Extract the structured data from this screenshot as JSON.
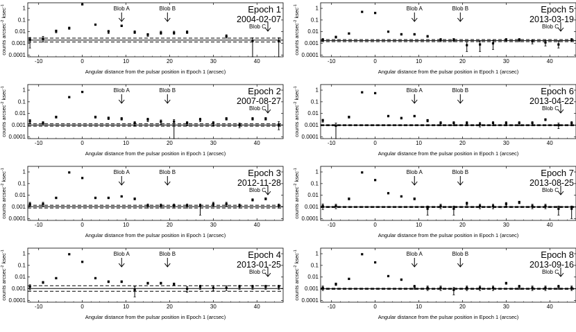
{
  "figure": {
    "common": {
      "xlabel": "Angular distance from the pulsar position in Epoch 1 (arcsec)",
      "ylabel": [
        "counts arcsec",
        "-2",
        " ksec",
        "-1"
      ],
      "xticks": [
        -10,
        0,
        10,
        20,
        30,
        40
      ],
      "yticks": [
        "1",
        "0.1",
        "0.01",
        "0.001",
        "0.0001"
      ],
      "blob_labels": [
        "Blob A",
        "Blob B",
        "Blob C"
      ]
    }
  },
  "chart_data": [
    {
      "type": "scatter",
      "epoch": "Epoch 1",
      "date": "2004-02-07",
      "x_range": [
        -12.5,
        46
      ],
      "y_range_log": [
        7e-05,
        3
      ],
      "blobs": [
        9,
        19.5,
        42.5
      ],
      "band": [
        0.0013,
        0.0028
      ],
      "points": [
        {
          "x": -12,
          "y": 0.002,
          "lo": 0.0004,
          "hi": 0.0032
        },
        {
          "x": -9,
          "y": 0.0025,
          "lo": 0.0013,
          "hi": 0.004
        },
        {
          "x": -6,
          "y": 0.011,
          "lo": 0.008,
          "hi": 0.014
        },
        {
          "x": -3,
          "y": 0.02,
          "lo": 0.016,
          "hi": 0.025
        },
        {
          "x": 0,
          "y": 2.2
        },
        {
          "x": 3,
          "y": 0.04,
          "lo": 0.035,
          "hi": 0.045
        },
        {
          "x": 6,
          "y": 0.01,
          "lo": 0.007,
          "hi": 0.013
        },
        {
          "x": 9,
          "y": 0.032,
          "lo": 0.027,
          "hi": 0.037
        },
        {
          "x": 12,
          "y": 0.009,
          "lo": 0.007,
          "hi": 0.012
        },
        {
          "x": 15,
          "y": 0.0055,
          "lo": 0.004,
          "hi": 0.007
        },
        {
          "x": 18,
          "y": 0.008,
          "lo": 0.006,
          "hi": 0.011
        },
        {
          "x": 21,
          "y": 0.008,
          "lo": 0.006,
          "hi": 0.011
        },
        {
          "x": 24,
          "y": 0.009,
          "lo": 0.007,
          "hi": 0.012
        },
        {
          "x": 33,
          "y": 0.004,
          "lo": 0.0028,
          "hi": 0.0055
        },
        {
          "x": 39,
          "y": 0.0016,
          "lo": 7e-05,
          "hi": 0.003
        },
        {
          "x": 45,
          "y": 0.0016,
          "lo": 7e-05,
          "hi": 0.003
        }
      ]
    },
    {
      "type": "scatter",
      "epoch": "Epoch 2",
      "date": "2007-08-27",
      "x_range": [
        -12.5,
        46
      ],
      "y_range_log": [
        7e-05,
        3
      ],
      "blobs": [
        9,
        19.5,
        42.5
      ],
      "band": [
        0.0008,
        0.0013
      ],
      "points": [
        {
          "x": -12,
          "y": 0.0022,
          "lo": 0.0015,
          "hi": 0.003
        },
        {
          "x": -9,
          "y": 0.0015,
          "lo": 0.001,
          "hi": 0.002
        },
        {
          "x": -6,
          "y": 0.005,
          "lo": 0.004,
          "hi": 0.006
        },
        {
          "x": -3,
          "y": 0.25
        },
        {
          "x": 0,
          "y": 0.7
        },
        {
          "x": 3,
          "y": 0.005,
          "lo": 0.004,
          "hi": 0.006
        },
        {
          "x": 6,
          "y": 0.004,
          "lo": 0.003,
          "hi": 0.005
        },
        {
          "x": 9,
          "y": 0.0035,
          "lo": 0.0027,
          "hi": 0.0045
        },
        {
          "x": 12,
          "y": 0.0015,
          "lo": 0.0009,
          "hi": 0.002
        },
        {
          "x": 15,
          "y": 0.003,
          "lo": 0.002,
          "hi": 0.004
        },
        {
          "x": 18,
          "y": 0.002,
          "lo": 0.0012,
          "hi": 0.0028
        },
        {
          "x": 21,
          "y": 0.002,
          "lo": 7e-05,
          "hi": 0.003
        },
        {
          "x": 24,
          "y": 0.0015,
          "lo": 0.0009,
          "hi": 0.002
        },
        {
          "x": 27,
          "y": 0.003,
          "lo": 0.002,
          "hi": 0.004
        },
        {
          "x": 30,
          "y": 0.0015,
          "lo": 0.0009,
          "hi": 0.002
        },
        {
          "x": 33,
          "y": 0.0035,
          "lo": 0.0027,
          "hi": 0.0045
        },
        {
          "x": 36,
          "y": 0.001,
          "lo": 0.0006,
          "hi": 0.0015
        },
        {
          "x": 39,
          "y": 0.0035,
          "lo": 0.0027,
          "hi": 0.0045
        },
        {
          "x": 42,
          "y": 0.0035,
          "lo": 0.0027,
          "hi": 0.0045
        },
        {
          "x": 45,
          "y": 0.001,
          "lo": 0.0004,
          "hi": 0.002
        }
      ]
    },
    {
      "type": "scatter",
      "epoch": "Epoch 3",
      "date": "2012-11-28",
      "x_range": [
        -12.5,
        46
      ],
      "y_range_log": [
        7e-05,
        3
      ],
      "blobs": [
        9,
        19.5,
        42.5
      ],
      "band": [
        0.0008,
        0.0014
      ],
      "points": [
        {
          "x": -12,
          "y": 0.0018,
          "lo": 0.0012,
          "hi": 0.0025
        },
        {
          "x": -9,
          "y": 0.0018,
          "lo": 0.0012,
          "hi": 0.0025
        },
        {
          "x": -6,
          "y": 0.006,
          "lo": 0.005,
          "hi": 0.007
        },
        {
          "x": -3,
          "y": 0.9
        },
        {
          "x": 0,
          "y": 0.3
        },
        {
          "x": 3,
          "y": 0.006,
          "lo": 0.005,
          "hi": 0.007
        },
        {
          "x": 6,
          "y": 0.006,
          "lo": 0.005,
          "hi": 0.007
        },
        {
          "x": 9,
          "y": 0.008,
          "lo": 0.007,
          "hi": 0.009
        },
        {
          "x": 12,
          "y": 0.005,
          "lo": 0.004,
          "hi": 0.006
        },
        {
          "x": 15,
          "y": 0.0013,
          "lo": 0.0008,
          "hi": 0.0018
        },
        {
          "x": 18,
          "y": 0.0013,
          "lo": 0.0008,
          "hi": 0.0018
        },
        {
          "x": 21,
          "y": 0.0013,
          "lo": 0.0008,
          "hi": 0.0018
        },
        {
          "x": 24,
          "y": 0.0013,
          "lo": 0.0008,
          "hi": 0.0018
        },
        {
          "x": 27,
          "y": 0.0013,
          "lo": 0.0002,
          "hi": 0.0018
        },
        {
          "x": 30,
          "y": 0.0018,
          "lo": 0.0012,
          "hi": 0.0025
        },
        {
          "x": 33,
          "y": 0.0018,
          "lo": 0.0012,
          "hi": 0.0025
        },
        {
          "x": 36,
          "y": 0.0013,
          "lo": 0.0008,
          "hi": 0.0018
        },
        {
          "x": 39,
          "y": 0.004,
          "lo": 0.0032,
          "hi": 0.005
        },
        {
          "x": 42,
          "y": 0.005,
          "lo": 0.004,
          "hi": 0.006
        },
        {
          "x": 45,
          "y": 0.0013,
          "lo": 0.0008,
          "hi": 0.0018
        }
      ]
    },
    {
      "type": "scatter",
      "epoch": "Epoch 4",
      "date": "2013-01-25",
      "x_range": [
        -12.5,
        46
      ],
      "y_range_log": [
        7e-05,
        3
      ],
      "blobs": [
        9,
        19.5,
        42.5
      ],
      "band": [
        0.0006,
        0.0018
      ],
      "points": [
        {
          "x": -12,
          "y": 0.0015,
          "lo": 0.0008,
          "hi": 0.0022
        },
        {
          "x": -9,
          "y": 0.0035,
          "lo": 0.0028,
          "hi": 0.0042
        },
        {
          "x": -6,
          "y": 0.008,
          "lo": 0.007,
          "hi": 0.009
        },
        {
          "x": -3,
          "y": 0.9
        },
        {
          "x": 0,
          "y": 0.2
        },
        {
          "x": 3,
          "y": 0.008,
          "lo": 0.007,
          "hi": 0.009
        },
        {
          "x": 6,
          "y": 0.004,
          "lo": 0.0033,
          "hi": 0.0048
        },
        {
          "x": 9,
          "y": 0.004,
          "lo": 0.0033,
          "hi": 0.0048
        },
        {
          "x": 12,
          "y": 0.0008,
          "lo": 0.0002,
          "hi": 0.0015
        },
        {
          "x": 15,
          "y": 0.003,
          "lo": 0.0024,
          "hi": 0.0036
        },
        {
          "x": 18,
          "y": 0.003,
          "lo": 0.0024,
          "hi": 0.0036
        },
        {
          "x": 21,
          "y": 0.0025,
          "lo": 0.0019,
          "hi": 0.0031
        },
        {
          "x": 24,
          "y": 0.001,
          "lo": 0.0005,
          "hi": 0.0015
        },
        {
          "x": 27,
          "y": 0.0015,
          "lo": 0.0009,
          "hi": 0.002
        },
        {
          "x": 30,
          "y": 0.0012,
          "lo": 0.0007,
          "hi": 0.0018
        },
        {
          "x": 33,
          "y": 0.0012,
          "lo": 0.0007,
          "hi": 0.0018
        },
        {
          "x": 36,
          "y": 0.0015,
          "lo": 0.0009,
          "hi": 0.002
        },
        {
          "x": 39,
          "y": 0.0015,
          "lo": 0.0009,
          "hi": 0.002
        },
        {
          "x": 42,
          "y": 0.0015,
          "lo": 0.0009,
          "hi": 0.002
        },
        {
          "x": 45,
          "y": 0.0015,
          "lo": 0.0009,
          "hi": 0.002
        }
      ]
    },
    {
      "type": "scatter",
      "epoch": "Epoch 5",
      "date": "2013-03-19",
      "x_range": [
        -12.5,
        46
      ],
      "y_range_log": [
        7e-05,
        3
      ],
      "blobs": [
        9,
        19.5,
        42.5
      ],
      "band": [
        0.0014,
        0.0021
      ],
      "points": [
        {
          "x": -12,
          "y": 0.002,
          "lo": 0.0014,
          "hi": 0.0026
        },
        {
          "x": -9,
          "y": 0.0035,
          "lo": 0.0028,
          "hi": 0.0042
        },
        {
          "x": -6,
          "y": 0.007,
          "lo": 0.006,
          "hi": 0.008
        },
        {
          "x": -3,
          "y": 0.5
        },
        {
          "x": 0,
          "y": 0.4
        },
        {
          "x": 3,
          "y": 0.01,
          "lo": 0.009,
          "hi": 0.011
        },
        {
          "x": 6,
          "y": 0.006,
          "lo": 0.005,
          "hi": 0.007
        },
        {
          "x": 9,
          "y": 0.006,
          "lo": 0.005,
          "hi": 0.007
        },
        {
          "x": 12,
          "y": 0.004,
          "lo": 0.0033,
          "hi": 0.0048
        },
        {
          "x": 15,
          "y": 0.002,
          "lo": 0.0014,
          "hi": 0.0026
        },
        {
          "x": 18,
          "y": 0.002,
          "lo": 0.0014,
          "hi": 0.0026
        },
        {
          "x": 21,
          "y": 0.0007,
          "lo": 0.0002,
          "hi": 0.0014
        },
        {
          "x": 24,
          "y": 0.0008,
          "lo": 0.0002,
          "hi": 0.0016
        },
        {
          "x": 27,
          "y": 0.001,
          "lo": 0.0003,
          "hi": 0.0018
        },
        {
          "x": 30,
          "y": 0.002,
          "lo": 0.0014,
          "hi": 0.0026
        },
        {
          "x": 33,
          "y": 0.002,
          "lo": 0.0014,
          "hi": 0.0026
        },
        {
          "x": 36,
          "y": 0.0015,
          "lo": 0.0009,
          "hi": 0.002
        },
        {
          "x": 39,
          "y": 0.0012,
          "lo": 0.0006,
          "hi": 0.0018
        },
        {
          "x": 42,
          "y": 0.0008,
          "lo": 0.0004,
          "hi": 0.0015
        },
        {
          "x": 45,
          "y": 0.002,
          "lo": 0.0014,
          "hi": 0.0026
        }
      ]
    },
    {
      "type": "scatter",
      "epoch": "Epoch 6",
      "date": "2013-04-22",
      "x_range": [
        -12.5,
        46
      ],
      "y_range_log": [
        7e-05,
        3
      ],
      "blobs": [
        9,
        19.5,
        42.5
      ],
      "band": [
        0.0009,
        0.0011
      ],
      "points": [
        {
          "x": -12,
          "y": 0.0025,
          "lo": 0.0018,
          "hi": 0.0032
        },
        {
          "x": -9,
          "y": 0.0009,
          "lo": 7e-05,
          "hi": 0.0015
        },
        {
          "x": -6,
          "y": 0.005,
          "lo": 0.004,
          "hi": 0.006
        },
        {
          "x": -3,
          "y": 0.65
        },
        {
          "x": 0,
          "y": 0.55
        },
        {
          "x": 3,
          "y": 0.006,
          "lo": 0.005,
          "hi": 0.007
        },
        {
          "x": 6,
          "y": 0.004,
          "lo": 0.0033,
          "hi": 0.0048
        },
        {
          "x": 9,
          "y": 0.006,
          "lo": 0.005,
          "hi": 0.007
        },
        {
          "x": 12,
          "y": 0.0025,
          "lo": 0.0019,
          "hi": 0.0031
        },
        {
          "x": 15,
          "y": 0.0015,
          "lo": 0.0009,
          "hi": 0.002
        },
        {
          "x": 18,
          "y": 0.0015,
          "lo": 0.0009,
          "hi": 0.002
        },
        {
          "x": 21,
          "y": 0.0015,
          "lo": 0.0009,
          "hi": 0.002
        },
        {
          "x": 24,
          "y": 0.0012,
          "lo": 0.0007,
          "hi": 0.0017
        },
        {
          "x": 27,
          "y": 0.0015,
          "lo": 0.0009,
          "hi": 0.002
        },
        {
          "x": 30,
          "y": 0.0015,
          "lo": 0.0009,
          "hi": 0.002
        },
        {
          "x": 33,
          "y": 0.0015,
          "lo": 0.0009,
          "hi": 0.002
        },
        {
          "x": 36,
          "y": 0.0015,
          "lo": 0.0009,
          "hi": 0.002
        },
        {
          "x": 39,
          "y": 0.003,
          "lo": 0.0024,
          "hi": 0.0036
        },
        {
          "x": 42,
          "y": 0.001,
          "lo": 0.0005,
          "hi": 0.0015
        },
        {
          "x": 45,
          "y": 0.0015,
          "lo": 0.0009,
          "hi": 0.002
        }
      ]
    },
    {
      "type": "scatter",
      "epoch": "Epoch 7",
      "date": "2013-08-25",
      "x_range": [
        -12.5,
        46
      ],
      "y_range_log": [
        7e-05,
        3
      ],
      "blobs": [
        9,
        19.5,
        42.5
      ],
      "band": [
        0.0009,
        0.0011
      ],
      "points": [
        {
          "x": -12,
          "y": 0.0012,
          "lo": 0.0006,
          "hi": 0.0018
        },
        {
          "x": -9,
          "y": 0.0012,
          "lo": 0.0007,
          "hi": 0.0017
        },
        {
          "x": -6,
          "y": 0.005,
          "lo": 0.004,
          "hi": 0.006
        },
        {
          "x": -3,
          "y": 0.9
        },
        {
          "x": 0,
          "y": 0.2
        },
        {
          "x": 3,
          "y": 0.015,
          "lo": 0.013,
          "hi": 0.017
        },
        {
          "x": 6,
          "y": 0.008,
          "lo": 0.007,
          "hi": 0.009
        },
        {
          "x": 9,
          "y": 0.005,
          "lo": 0.004,
          "hi": 0.006
        },
        {
          "x": 12,
          "y": 0.0007,
          "lo": 0.0002,
          "hi": 0.0012
        },
        {
          "x": 15,
          "y": 0.0012,
          "lo": 0.0007,
          "hi": 0.0017
        },
        {
          "x": 18,
          "y": 0.0007,
          "lo": 0.0002,
          "hi": 0.0012
        },
        {
          "x": 21,
          "y": 0.002,
          "lo": 0.0014,
          "hi": 0.0026
        },
        {
          "x": 24,
          "y": 0.0012,
          "lo": 0.0007,
          "hi": 0.0017
        },
        {
          "x": 27,
          "y": 0.0012,
          "lo": 0.0007,
          "hi": 0.0017
        },
        {
          "x": 30,
          "y": 0.0018,
          "lo": 0.0012,
          "hi": 0.0024
        },
        {
          "x": 33,
          "y": 0.0025,
          "lo": 0.0019,
          "hi": 0.0031
        },
        {
          "x": 36,
          "y": 0.0012,
          "lo": 0.0007,
          "hi": 0.0017
        },
        {
          "x": 39,
          "y": 0.0012,
          "lo": 0.0007,
          "hi": 0.0017
        },
        {
          "x": 42,
          "y": 0.0007,
          "lo": 0.0002,
          "hi": 0.0012
        },
        {
          "x": 45,
          "y": 0.0007,
          "lo": 0.0001,
          "hi": 0.0012
        }
      ]
    },
    {
      "type": "scatter",
      "epoch": "Epoch 8",
      "date": "2013-09-16",
      "x_range": [
        -12.5,
        46
      ],
      "y_range_log": [
        7e-05,
        3
      ],
      "blobs": [
        9,
        19.5,
        42.5
      ],
      "band": [
        0.0009,
        0.0011
      ],
      "points": [
        {
          "x": -12,
          "y": 0.0012,
          "lo": 0.0007,
          "hi": 0.0017
        },
        {
          "x": -9,
          "y": 0.0025,
          "lo": 0.0019,
          "hi": 0.0031
        },
        {
          "x": -6,
          "y": 0.007,
          "lo": 0.006,
          "hi": 0.008
        },
        {
          "x": -3,
          "y": 0.9
        },
        {
          "x": 0,
          "y": 0.18
        },
        {
          "x": 3,
          "y": 0.012,
          "lo": 0.0105,
          "hi": 0.0135
        },
        {
          "x": 6,
          "y": 0.006,
          "lo": 0.005,
          "hi": 0.007
        },
        {
          "x": 9,
          "y": 0.0015,
          "lo": 0.0009,
          "hi": 0.002
        },
        {
          "x": 12,
          "y": 0.0012,
          "lo": 0.0007,
          "hi": 0.0017
        },
        {
          "x": 15,
          "y": 0.0012,
          "lo": 0.0007,
          "hi": 0.0017
        },
        {
          "x": 18,
          "y": 0.0008,
          "lo": 0.0003,
          "hi": 0.0013
        },
        {
          "x": 21,
          "y": 0.0012,
          "lo": 0.0007,
          "hi": 0.0017
        },
        {
          "x": 24,
          "y": 0.0012,
          "lo": 0.0007,
          "hi": 0.0017
        },
        {
          "x": 27,
          "y": 0.0012,
          "lo": 0.0007,
          "hi": 0.0017
        },
        {
          "x": 30,
          "y": 0.003,
          "lo": 0.0024,
          "hi": 0.0036
        },
        {
          "x": 33,
          "y": 0.0015,
          "lo": 0.0009,
          "hi": 0.002
        },
        {
          "x": 36,
          "y": 0.0012,
          "lo": 0.0007,
          "hi": 0.0017
        },
        {
          "x": 39,
          "y": 0.0012,
          "lo": 0.0007,
          "hi": 0.0017
        },
        {
          "x": 42,
          "y": 0.0015,
          "lo": 0.0009,
          "hi": 0.002
        },
        {
          "x": 45,
          "y": 0.0012,
          "lo": 0.0007,
          "hi": 0.0017
        }
      ]
    }
  ]
}
